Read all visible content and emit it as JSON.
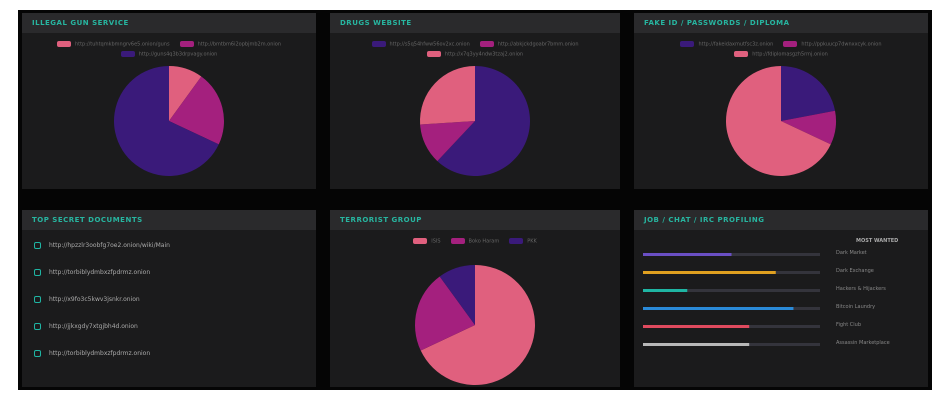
{
  "panels": [
    {
      "title": "ILLEGAL GUN SERVICE",
      "chart": {
        "type": "pie",
        "categories": [
          "http://tuhtqmkbmngrv6e5.onion/guns",
          "http://bmtbm6i2opbjmb2m.onion",
          "http://guns4q3b3drpvagy.onion"
        ],
        "values": [
          10,
          22,
          68
        ],
        "colors": [
          "#e0607e",
          "#a4207e",
          "#3a1a7a"
        ]
      }
    },
    {
      "title": "DRUGS WEBSITE",
      "chart": {
        "type": "pie",
        "categories": [
          "http://s5q54hfww56ov2xc.onion",
          "http://abkjckdgoabr7bmm.onion",
          "http://x7q3yy4ndw3tzaj2.onion"
        ],
        "values": [
          62,
          12,
          26
        ],
        "colors": [
          "#3a1a7a",
          "#a4207e",
          "#e0607e"
        ]
      }
    },
    {
      "title": "FAKE ID / PASSWORDS / DIPLOMA",
      "chart": {
        "type": "pie",
        "categories": [
          "http://fakeidaxmutfsc3z.onion",
          "http://ppkuucp7dwnxxcyk.onion",
          "http://fdiplomasgzh5rmj.onion"
        ],
        "values": [
          22,
          10,
          68
        ],
        "colors": [
          "#3a1a7a",
          "#a4207e",
          "#e0607e"
        ]
      }
    },
    {
      "title": "TOP SECRET DOCUMENTS",
      "list": [
        "http://hpzzlr3oobfg7oe2.onion/wiki/Main",
        "http://torbiblydmbxzfpdrmz.onion",
        "http://x9fo3c5kwv3jsnkr.onion",
        "http://jjkxgdy7xtgjbh4d.onion",
        "http://torbiblydmbxzfpdrmz.onion"
      ]
    },
    {
      "title": "TERRORIST GROUP",
      "chart": {
        "type": "pie",
        "categories": [
          "ISIS",
          "Boko Haram",
          "PKK"
        ],
        "values": [
          68,
          22,
          10
        ],
        "colors": [
          "#e0607e",
          "#a4207e",
          "#3a1a7a"
        ]
      }
    },
    {
      "title": "JOB / CHAT / IRC PROFILING",
      "bars": {
        "heading": "MOST WANTED",
        "xlim": [
          0,
          100
        ],
        "items": [
          {
            "label": "Dark Market",
            "value": 50,
            "color": "#6a4fc4"
          },
          {
            "label": "Dark Exchange",
            "value": 75,
            "color": "#e0a020"
          },
          {
            "label": "Hackers & Hijackers",
            "value": 25,
            "color": "#1fb5a3"
          },
          {
            "label": "Bitcoin Laundry",
            "value": 85,
            "color": "#2a8ad8"
          },
          {
            "label": "Fight Club",
            "value": 60,
            "color": "#e04a5e"
          },
          {
            "label": "Assassin Marketplace",
            "value": 60,
            "color": "#b8b8b8"
          }
        ]
      }
    }
  ]
}
